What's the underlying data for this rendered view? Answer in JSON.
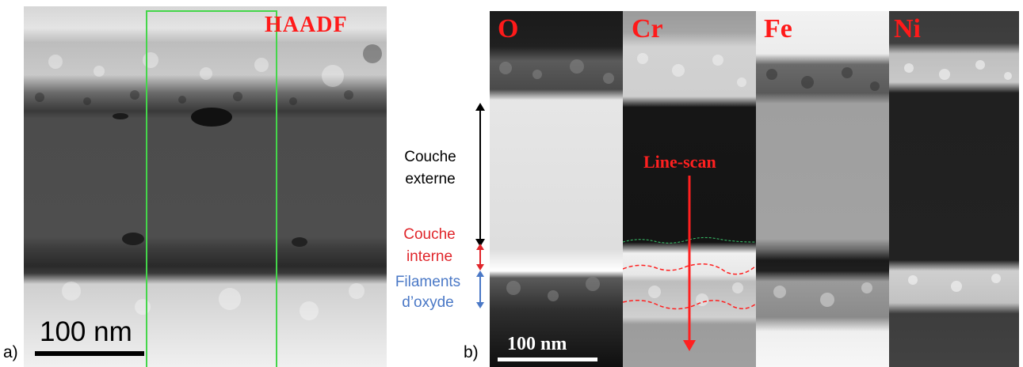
{
  "panel_a": {
    "letter": "a)",
    "title": "HAADF",
    "scale_bar_label": "100 nm"
  },
  "panel_b": {
    "letter": "b)",
    "scale_bar_label": "100 nm",
    "line_scan_label": "Line-scan",
    "maps": [
      {
        "element": "O"
      },
      {
        "element": "Cr"
      },
      {
        "element": "Fe"
      },
      {
        "element": "Ni"
      }
    ],
    "layers": {
      "outer_line1": "Couche",
      "outer_line2": "externe",
      "inner_line1": "Couche",
      "inner_line2": "interne",
      "filament_line1": "Filaments",
      "filament_line2": "d’oxyde"
    }
  },
  "colors": {
    "map_label": "#ff1a1a",
    "outer_arrow": "#000000",
    "inner_layer": "#e0262b",
    "filaments": "#4a78c6",
    "roi_box": "#44d64a",
    "line_scan": "#ff2020"
  }
}
